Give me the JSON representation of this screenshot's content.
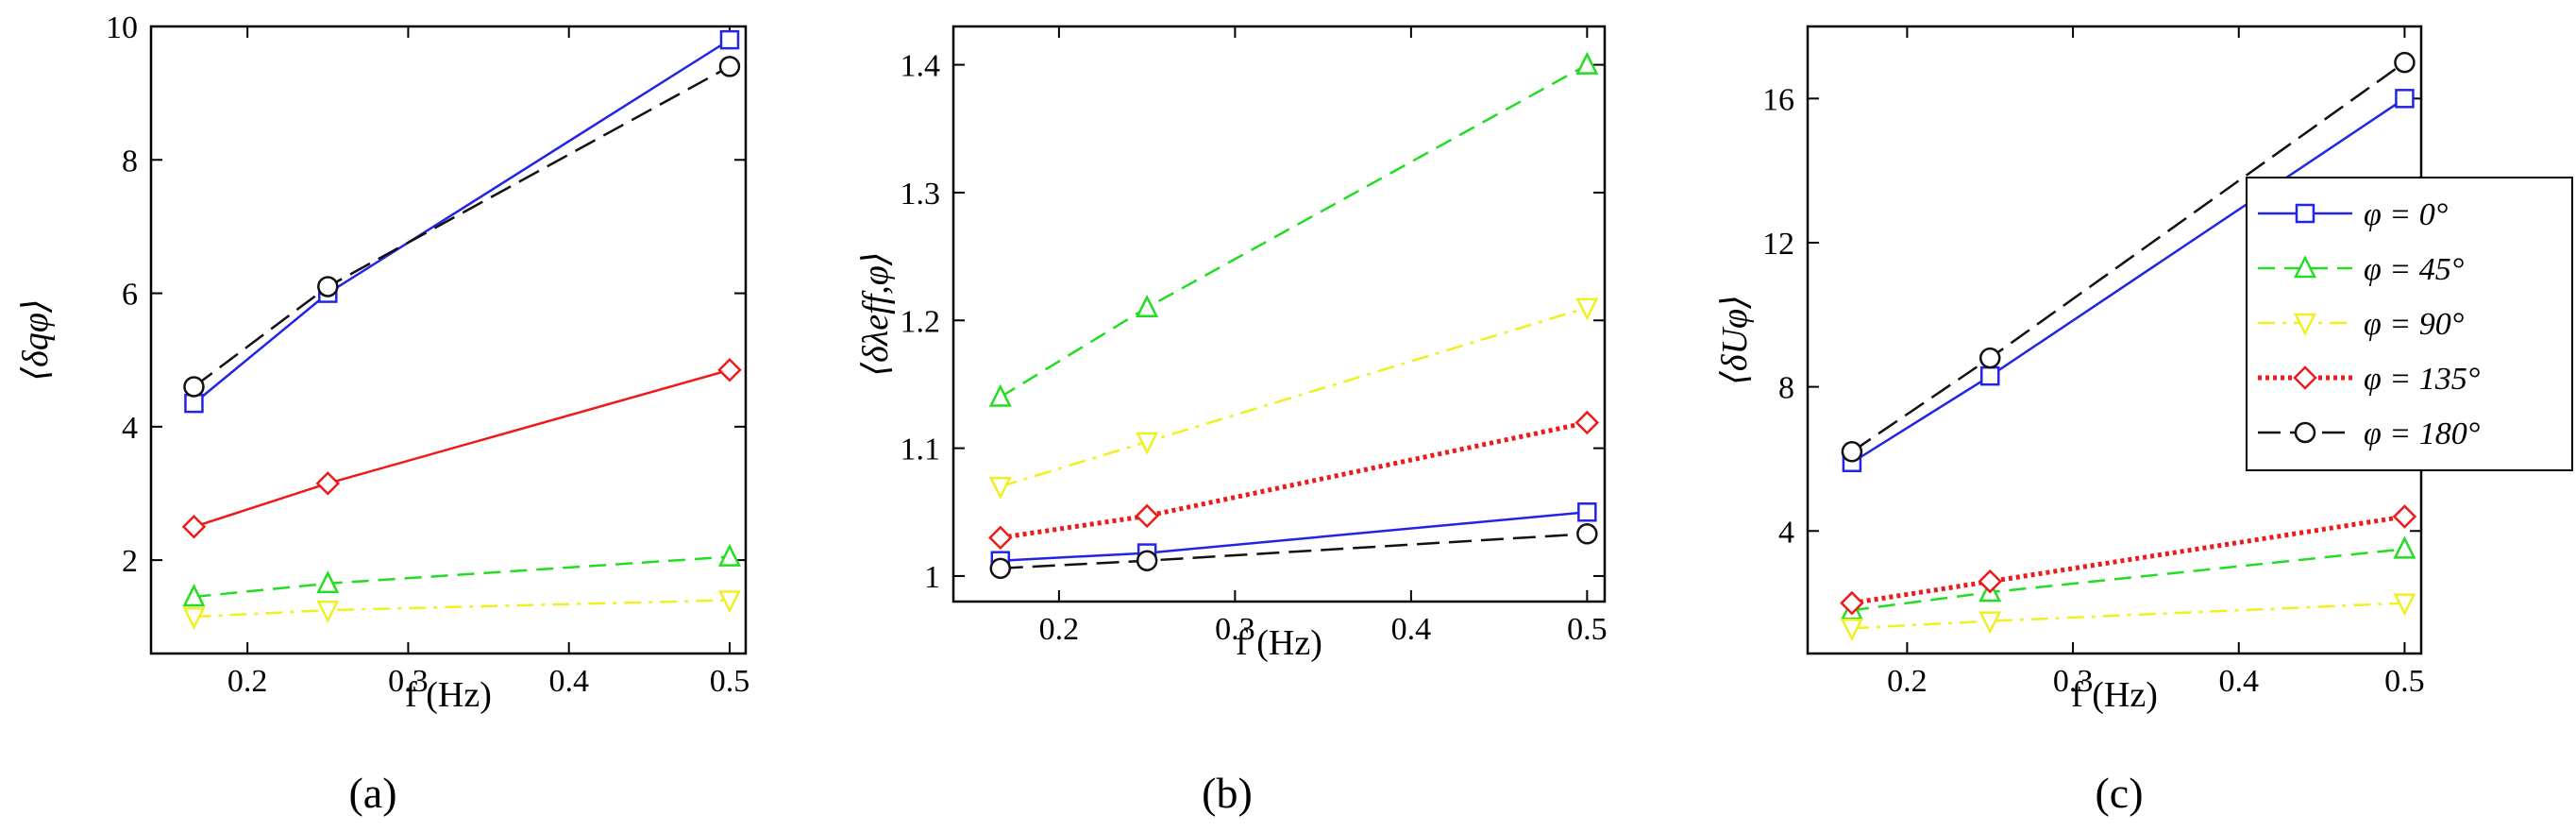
{
  "figure": {
    "series_styles": [
      {
        "key": "phi0",
        "color": "#2424e6",
        "marker": "square",
        "dash": "solid"
      },
      {
        "key": "phi45",
        "color": "#22dd22",
        "marker": "triangle-up",
        "dash": "dashed"
      },
      {
        "key": "phi90",
        "color": "#f0f020",
        "marker": "triangle-down",
        "dash": "dashdot"
      },
      {
        "key": "phi135",
        "color": "#ee1a1a",
        "marker": "diamond",
        "dash": "dotted"
      },
      {
        "key": "phi180",
        "color": "#111111",
        "marker": "circle",
        "dash": "longdash"
      }
    ],
    "legend": {
      "placement": "right of panel c",
      "entries": [
        "φ = 0°",
        "φ = 45°",
        "φ = 90°",
        "φ = 135°",
        "φ = 180°"
      ]
    }
  },
  "chart_data": [
    {
      "type": "line",
      "panel_label": "(a)",
      "xlabel": "f (Hz)",
      "ylabel": "⟨δqφ⟩",
      "xlim": [
        0.14,
        0.51
      ],
      "ylim": [
        0.6,
        10
      ],
      "xticks": [
        0.2,
        0.3,
        0.4,
        0.5
      ],
      "xtick_labels": [
        "0.2",
        "0.3",
        "0.4",
        "0.5"
      ],
      "yticks": [
        2,
        4,
        6,
        8,
        10
      ],
      "ytick_labels": [
        "2",
        "4",
        "6",
        "8",
        "10"
      ],
      "x": [
        0.1667,
        0.25,
        0.5
      ],
      "series": [
        {
          "name": "φ = 0°",
          "values": [
            4.35,
            6.0,
            9.8
          ]
        },
        {
          "name": "φ = 45°",
          "values": [
            1.45,
            1.65,
            2.05
          ]
        },
        {
          "name": "φ = 90°",
          "values": [
            1.15,
            1.25,
            1.4
          ]
        },
        {
          "name": "φ = 135°",
          "values": [
            2.5,
            3.15,
            4.85
          ],
          "line_style": "solid"
        },
        {
          "name": "φ = 180°",
          "values": [
            4.6,
            6.1,
            9.4
          ]
        }
      ]
    },
    {
      "type": "line",
      "panel_label": "(b)",
      "xlabel": "f (Hz)",
      "ylabel": "⟨δλeff,φ⟩",
      "xlim": [
        0.14,
        0.51
      ],
      "ylim": [
        0.98,
        1.43
      ],
      "xticks": [
        0.2,
        0.3,
        0.4,
        0.5
      ],
      "xtick_labels": [
        "0.2",
        "0.3",
        "0.4",
        "0.5"
      ],
      "yticks": [
        1,
        1.1,
        1.2,
        1.3,
        1.4
      ],
      "ytick_labels": [
        "1",
        "1.1",
        "1.2",
        "1.3",
        "1.4"
      ],
      "x": [
        0.1667,
        0.25,
        0.5
      ],
      "series": [
        {
          "name": "φ = 0°",
          "values": [
            1.012,
            1.018,
            1.05
          ]
        },
        {
          "name": "φ = 45°",
          "values": [
            1.14,
            1.21,
            1.4
          ]
        },
        {
          "name": "φ = 90°",
          "values": [
            1.07,
            1.105,
            1.21
          ]
        },
        {
          "name": "φ = 135°",
          "values": [
            1.03,
            1.047,
            1.12
          ]
        },
        {
          "name": "φ = 180°",
          "values": [
            1.006,
            1.012,
            1.033
          ]
        }
      ]
    },
    {
      "type": "line",
      "panel_label": "(c)",
      "xlabel": "f (Hz)",
      "ylabel": "⟨δUφ⟩",
      "xlim": [
        0.14,
        0.51
      ],
      "ylim": [
        0.6,
        18
      ],
      "xticks": [
        0.2,
        0.3,
        0.4,
        0.5
      ],
      "xtick_labels": [
        "0.2",
        "0.3",
        "0.4",
        "0.5"
      ],
      "yticks": [
        4,
        8,
        12,
        16
      ],
      "ytick_labels": [
        "4",
        "8",
        "12",
        "16"
      ],
      "x": [
        0.1667,
        0.25,
        0.5
      ],
      "series": [
        {
          "name": "φ = 0°",
          "values": [
            5.9,
            8.3,
            16.0
          ]
        },
        {
          "name": "φ = 45°",
          "values": [
            1.8,
            2.3,
            3.5
          ]
        },
        {
          "name": "φ = 90°",
          "values": [
            1.3,
            1.5,
            2.0
          ]
        },
        {
          "name": "φ = 135°",
          "values": [
            2.0,
            2.6,
            4.4
          ]
        },
        {
          "name": "φ = 180°",
          "values": [
            6.2,
            8.8,
            17.0
          ]
        }
      ]
    }
  ]
}
